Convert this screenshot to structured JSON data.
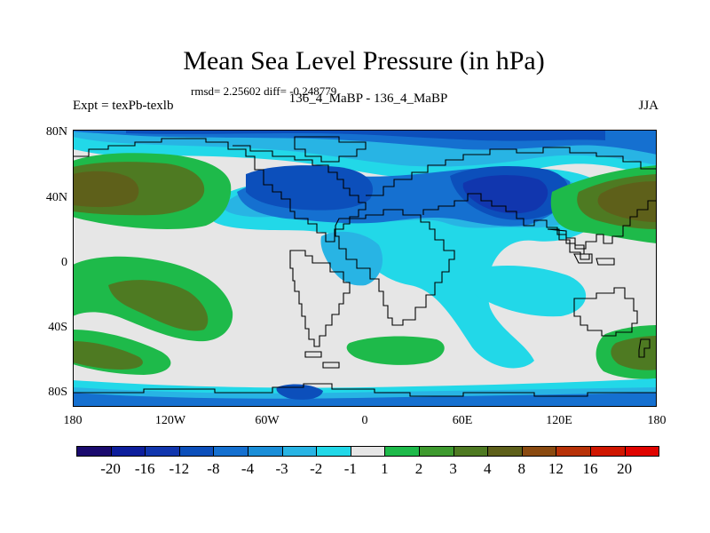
{
  "chart_data": {
    "type": "heatmap",
    "title": "Mean Sea Level Pressure (in hPa)",
    "stats_text": "rmsd= 2.25602 diff= -0.248779",
    "left_label": "Expt = texPb-texlb",
    "center_label": "136_4_MaBP - 136_4_MaBP",
    "season": "JJA",
    "y_ticks": [
      "80N",
      "40N",
      "0",
      "40S",
      "80S"
    ],
    "x_ticks": [
      "180",
      "120W",
      "60W",
      "0",
      "60E",
      "120E",
      "180"
    ],
    "lon_range": [
      -180,
      180
    ],
    "lat_range": [
      -90,
      90
    ],
    "colorbar_labels": [
      "-20",
      "-16",
      "-12",
      "-8",
      "-4",
      "-3",
      "-2",
      "-1",
      "1",
      "2",
      "3",
      "4",
      "8",
      "12",
      "16",
      "20"
    ],
    "colorbar_colors": [
      "#1a0a6e",
      "#0d1e9c",
      "#1136ae",
      "#0c4fbb",
      "#1570d0",
      "#1a8ed8",
      "#28b4e4",
      "#22d8e8",
      "#e6e6e6",
      "#1eba4a",
      "#3e9a2e",
      "#4e7a22",
      "#5e601a",
      "#8a4a10",
      "#b83208",
      "#d01600",
      "#e00400"
    ]
  },
  "map": {
    "background_color": "#e6e6e6"
  }
}
